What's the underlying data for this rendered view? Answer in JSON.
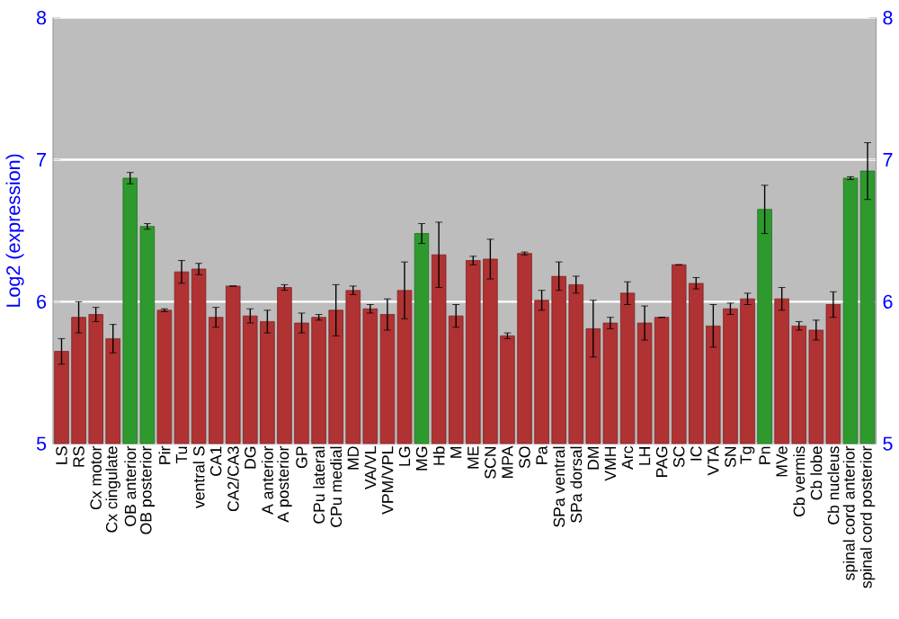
{
  "chart_data": {
    "type": "bar",
    "ylabel": "Log2 (expression)",
    "categories": [
      "LS",
      "RS",
      "Cx motor",
      "Cx cingulate",
      "OB anterior",
      "OB posterior",
      "Pir",
      "Tu",
      "ventral S",
      "CA1",
      "CA2/CA3",
      "DG",
      "A anterior",
      "A posterior",
      "GP",
      "CPu lateral",
      "CPu medial",
      "MD",
      "VA/VL",
      "VPM/VPL",
      "LG",
      "MG",
      "Hb",
      "M",
      "ME",
      "SCN",
      "MPA",
      "SO",
      "Pa",
      "SPa ventral",
      "SPa dorsal",
      "DM",
      "VMH",
      "Arc",
      "LH",
      "PAG",
      "SC",
      "IC",
      "VTA",
      "SN",
      "Tg",
      "Pn",
      "MVe",
      "Cb vermis",
      "Cb lobe",
      "Cb nucleus",
      "spinal cord anterior",
      "spinal cord posterior"
    ],
    "values": [
      5.65,
      5.89,
      5.91,
      5.74,
      6.87,
      6.53,
      5.94,
      6.21,
      6.23,
      5.89,
      6.11,
      5.9,
      5.86,
      6.1,
      5.85,
      5.89,
      5.94,
      6.08,
      5.95,
      5.91,
      6.08,
      6.48,
      6.33,
      5.9,
      6.29,
      6.3,
      5.76,
      6.34,
      6.01,
      6.18,
      6.12,
      5.81,
      5.85,
      6.06,
      5.85,
      5.89,
      6.26,
      6.13,
      5.83,
      5.95,
      6.02,
      6.65,
      6.02,
      5.83,
      5.8,
      5.98,
      6.87,
      6.92
    ],
    "errors": [
      0.09,
      0.11,
      0.05,
      0.1,
      0.04,
      0.02,
      0.01,
      0.08,
      0.04,
      0.07,
      0,
      0.05,
      0.08,
      0.02,
      0.07,
      0.02,
      0.18,
      0.03,
      0.03,
      0.11,
      0.2,
      0.07,
      0.23,
      0.08,
      0.03,
      0.14,
      0.02,
      0.01,
      0.07,
      0.1,
      0.06,
      0.2,
      0.04,
      0.08,
      0.12,
      0,
      0,
      0.04,
      0.15,
      0.04,
      0.04,
      0.17,
      0.08,
      0.03,
      0.07,
      0.09,
      0.01,
      0.2
    ],
    "colors": [
      "#b03232",
      "#b03232",
      "#b03232",
      "#b03232",
      "#2e9a2e",
      "#2e9a2e",
      "#b03232",
      "#b03232",
      "#b03232",
      "#b03232",
      "#b03232",
      "#b03232",
      "#b03232",
      "#b03232",
      "#b03232",
      "#b03232",
      "#b03232",
      "#b03232",
      "#b03232",
      "#b03232",
      "#b03232",
      "#2e9a2e",
      "#b03232",
      "#b03232",
      "#b03232",
      "#b03232",
      "#b03232",
      "#b03232",
      "#b03232",
      "#b03232",
      "#b03232",
      "#b03232",
      "#b03232",
      "#b03232",
      "#b03232",
      "#b03232",
      "#b03232",
      "#b03232",
      "#b03232",
      "#b03232",
      "#b03232",
      "#2e9a2e",
      "#b03232",
      "#b03232",
      "#b03232",
      "#b03232",
      "#2e9a2e",
      "#2e9a2e"
    ],
    "ylim": [
      5,
      8
    ],
    "yticks": [
      5,
      6,
      7,
      8
    ],
    "y2lim": [
      5,
      8
    ],
    "y2ticks": [
      5,
      6,
      7,
      8
    ],
    "grid": "y"
  }
}
